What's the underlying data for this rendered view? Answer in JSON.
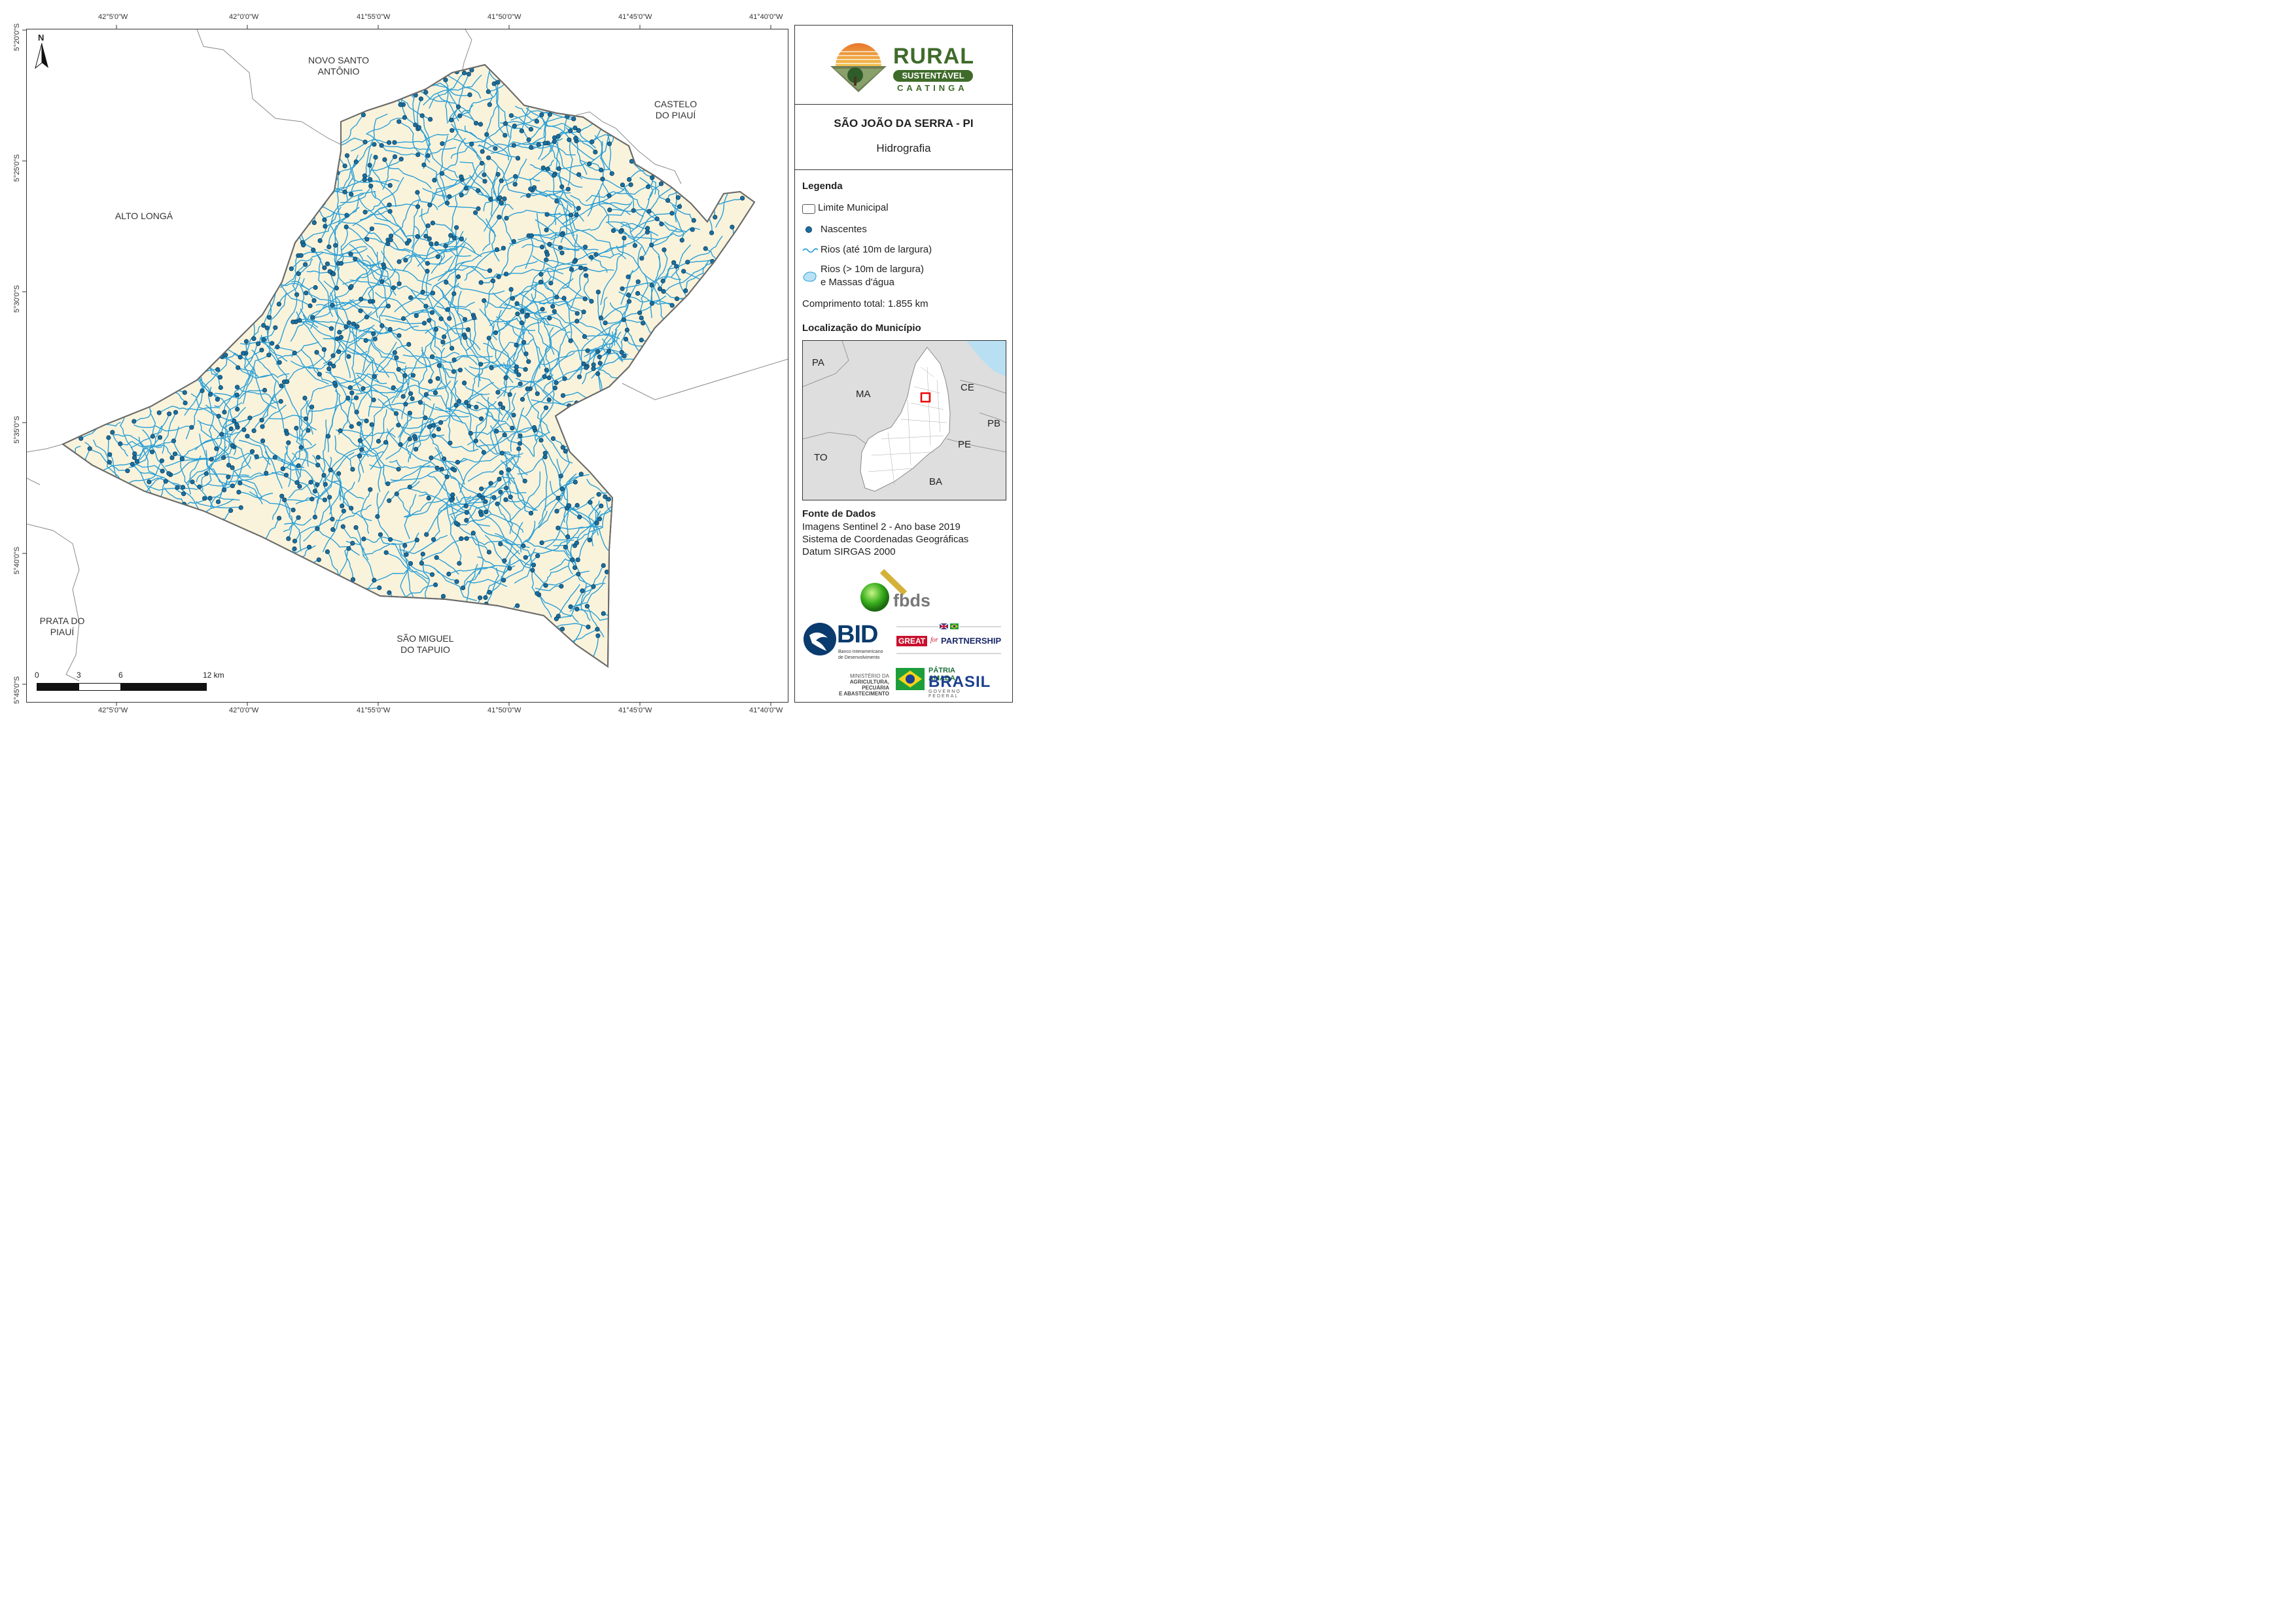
{
  "map": {
    "north_label": "N",
    "coords_top": [
      "42°5'0\"W",
      "42°0'0\"W",
      "41°55'0\"W",
      "41°50'0\"W",
      "41°45'0\"W",
      "41°40'0\"W"
    ],
    "coords_bottom": [
      "42°5'0\"W",
      "42°0'0\"W",
      "41°55'0\"W",
      "41°50'0\"W",
      "41°45'0\"W",
      "41°40'0\"W"
    ],
    "coords_left": [
      "5°20'0\"S",
      "5°25'0\"S",
      "5°30'0\"S",
      "5°35'0\"S",
      "5°40'0\"S",
      "5°45'0\"S"
    ],
    "neighbors": [
      {
        "line1": "NOVO SANTO",
        "line2": "ANTÔNIO"
      },
      {
        "line1": "CASTELO",
        "line2": "DO PIAUÍ"
      },
      {
        "line1": "ALTO LONGÁ",
        "line2": ""
      },
      {
        "line1": "PRATA DO",
        "line2": "PIAUÍ"
      },
      {
        "line1": "SÃO MIGUEL",
        "line2": "DO TAPUIO"
      }
    ],
    "scale_labels": [
      "0",
      "3",
      "6",
      "12 km"
    ],
    "colors": {
      "municipality_fill": "#f9f3dc",
      "river": "#2a9fd6",
      "spring_fill": "#1a6fa0",
      "spring_stroke": "#0d3d5c",
      "boundary": "#6b6b6b"
    }
  },
  "panel": {
    "logo": {
      "word1": "RURAL",
      "word2": "SUSTENTÁVEL",
      "word3": "CAATINGA",
      "brand_green": "#3f6b2a"
    },
    "title": "SÃO JOÃO DA SERRA - PI",
    "subtitle": "Hidrografia",
    "legend_title": "Legenda",
    "legend": [
      {
        "label": "Limite Municipal",
        "icon": "boundary-swatch"
      },
      {
        "label": "Nascentes",
        "icon": "spring-dot"
      },
      {
        "label": "Rios (até 10m de largura)",
        "icon": "river-line"
      },
      {
        "label": "Rios (> 10m de largura)",
        "label2": "e Massas d'água",
        "icon": "water-body"
      }
    ],
    "total_length": "Comprimento total:  1.855 km",
    "location_title": "Localização do Município",
    "inset_states": [
      "PA",
      "MA",
      "CE",
      "PB",
      "PE",
      "TO",
      "BA"
    ],
    "sources_title": "Fonte de Dados",
    "sources": [
      "Imagens Sentinel 2 - Ano base 2019",
      "Sistema de Coordenadas Geográficas",
      "Datum SIRGAS 2000"
    ],
    "logos": {
      "fbds": "fbds",
      "bid": "BID",
      "bid_sub1": "Banco Interamericano",
      "bid_sub2": "de Desenvolvimento",
      "great": "GREAT",
      "great_for": "for",
      "great_partnership": "PARTNERSHIP",
      "ministerio1": "MINISTÉRIO DA",
      "ministerio2": "AGRICULTURA, PECUÁRIA",
      "ministerio3": "E ABASTECIMENTO",
      "patria1": "PÁTRIA AMADA",
      "patria2": "BRASIL",
      "patria3": "GOVERNO FEDERAL"
    }
  }
}
